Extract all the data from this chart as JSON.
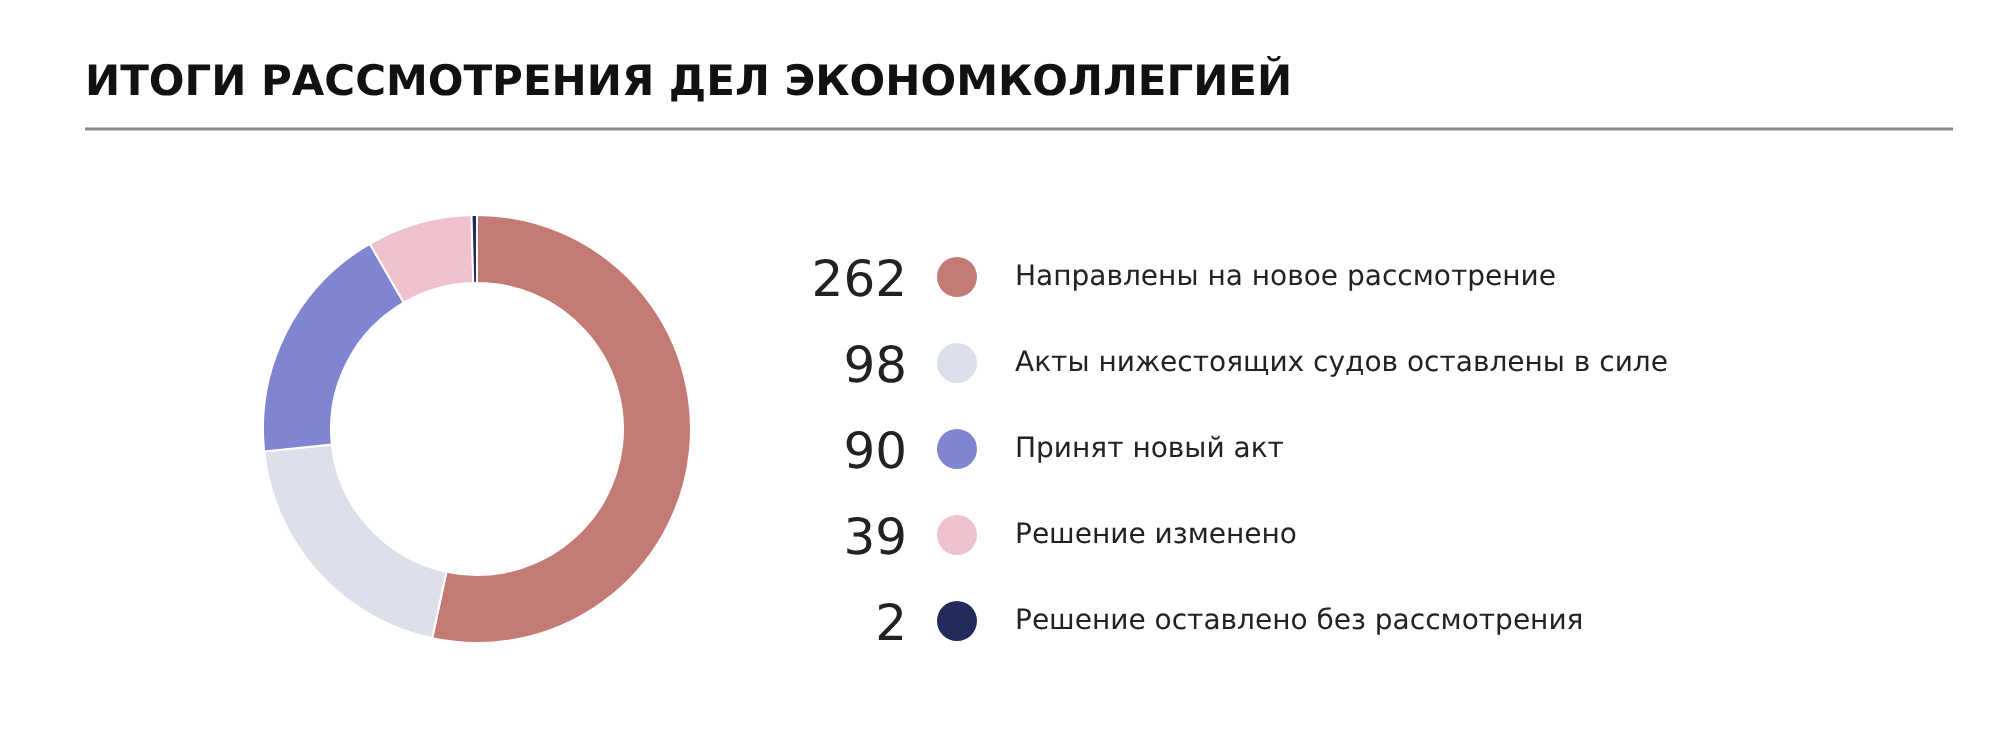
{
  "chart_data": {
    "type": "donut",
    "title": "ИТОГИ РАССМОТРЕНИЯ ДЕЛ ЭКОНОМКОЛЛЕГИЕЙ",
    "categories": [
      "Направлены на новое рассмотрение",
      "Акты нижестоящих судов оставлены в силе",
      "Принят новый акт",
      "Решение изменено",
      "Решение оставлено без рассмотрения"
    ],
    "values": [
      262,
      98,
      90,
      39,
      2
    ],
    "colors": [
      "#c47a74",
      "#dde0ea",
      "#7f85d1",
      "#efc1cc",
      "#232a5c"
    ],
    "data_labels": true,
    "legend": "right"
  }
}
